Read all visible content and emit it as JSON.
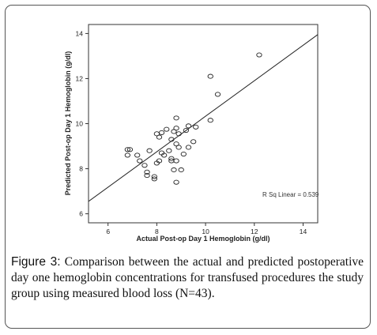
{
  "chart_data": {
    "type": "scatter",
    "xlabel": "Actual Post-op Day 1 Hemoglobin (g/dl)",
    "ylabel": "Predicted Post-op Day 1 Hemoglobin (g/dl)",
    "xlim": [
      5.2,
      14.6
    ],
    "ylim": [
      5.6,
      14.4
    ],
    "xticks": [
      "6",
      "8",
      "10",
      "12",
      "14"
    ],
    "yticks": [
      "6",
      "8",
      "10",
      "12",
      "14"
    ],
    "annotation": "R Sq Linear = 0.539",
    "fit_line": {
      "x": [
        5.2,
        14.6
      ],
      "y": [
        6.55,
        13.95
      ]
    },
    "points": [
      [
        6.8,
        8.85
      ],
      [
        6.8,
        8.6
      ],
      [
        7.2,
        8.6
      ],
      [
        7.3,
        8.35
      ],
      [
        7.5,
        8.15
      ],
      [
        7.6,
        7.85
      ],
      [
        7.6,
        7.7
      ],
      [
        7.7,
        8.8
      ],
      [
        7.9,
        7.55
      ],
      [
        7.9,
        7.65
      ],
      [
        8.0,
        8.25
      ],
      [
        8.0,
        9.55
      ],
      [
        8.1,
        8.35
      ],
      [
        8.1,
        9.4
      ],
      [
        8.2,
        9.6
      ],
      [
        8.2,
        8.7
      ],
      [
        8.3,
        8.6
      ],
      [
        8.4,
        9.75
      ],
      [
        8.5,
        8.8
      ],
      [
        8.6,
        8.35
      ],
      [
        8.6,
        8.45
      ],
      [
        8.6,
        9.3
      ],
      [
        8.7,
        9.65
      ],
      [
        8.7,
        7.95
      ],
      [
        8.8,
        10.25
      ],
      [
        8.8,
        9.8
      ],
      [
        8.8,
        9.1
      ],
      [
        8.8,
        8.35
      ],
      [
        8.8,
        7.4
      ],
      [
        8.9,
        9.55
      ],
      [
        8.9,
        8.95
      ],
      [
        9.0,
        7.95
      ],
      [
        9.1,
        8.65
      ],
      [
        9.2,
        9.7
      ],
      [
        9.3,
        9.9
      ],
      [
        9.3,
        8.95
      ],
      [
        9.5,
        9.2
      ],
      [
        9.6,
        9.85
      ],
      [
        10.2,
        12.1
      ],
      [
        10.2,
        10.15
      ],
      [
        10.5,
        11.3
      ],
      [
        12.2,
        13.05
      ],
      [
        6.9,
        8.85
      ]
    ]
  },
  "caption": {
    "label": "Figure 3:",
    "text": " Comparison between the actual and predicted postoperative day one hemoglobin concentrations for transfused procedures the study group using measured blood loss (N=43)."
  }
}
